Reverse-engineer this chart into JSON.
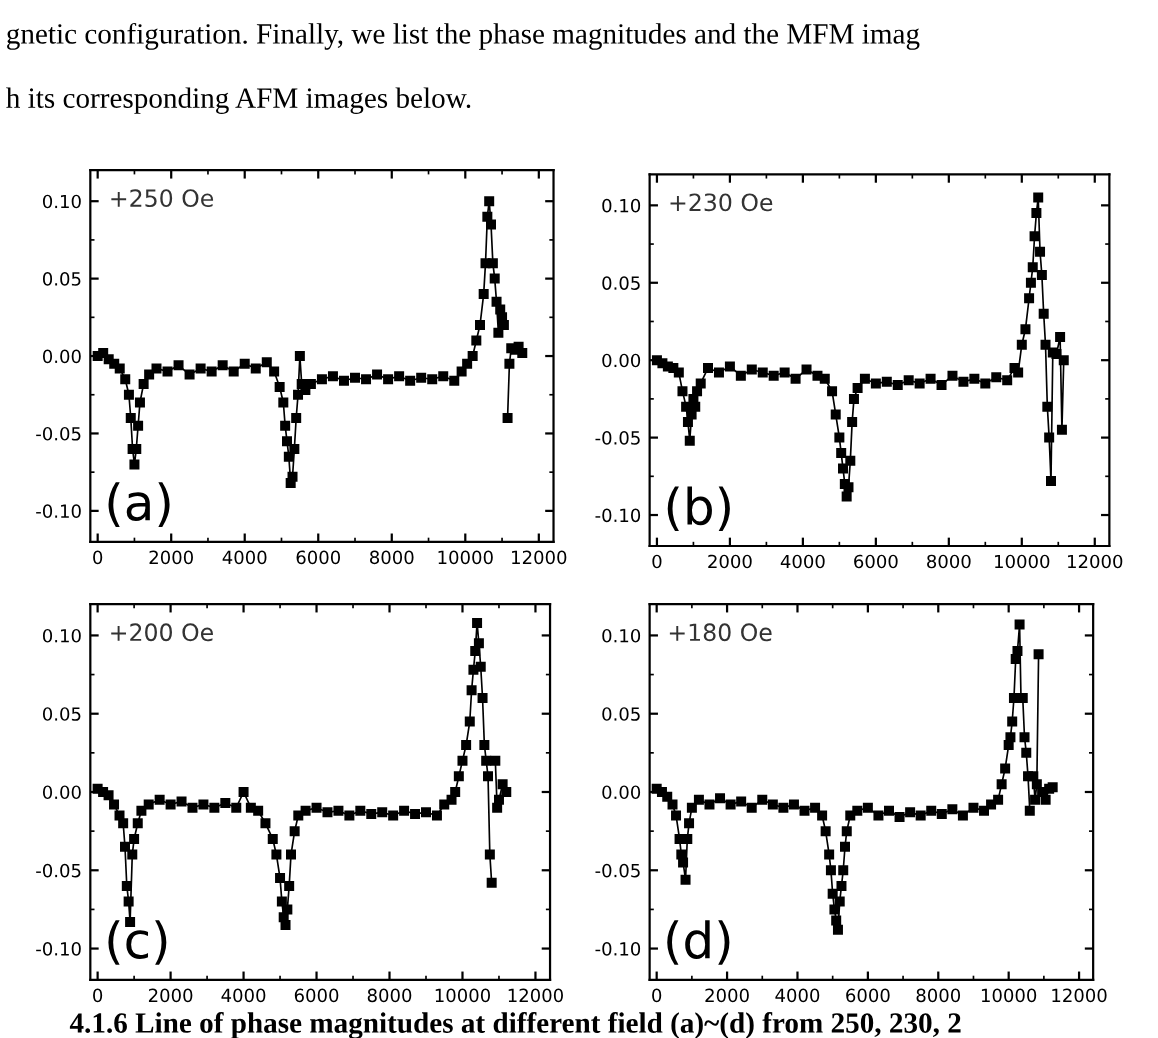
{
  "chart_data": [
    {
      "type": "line",
      "marker": "square",
      "line_style": "solid",
      "grid": false,
      "legend": false,
      "annotations": [
        "+250 Oe",
        "(a)",
        "gnetic configuration. Finally, we list the phase magnitudes and the MFM imag",
        "h its corresponding AFM images below."
      ],
      "xlim": [
        -200,
        12400
      ],
      "xticks": [
        0,
        2000,
        4000,
        6000,
        8000,
        10000,
        12000
      ],
      "ylim": [
        -0.12,
        0.12
      ],
      "yticks": [
        {
          "value": -0.1,
          "label": "-0.10"
        },
        {
          "value": -0.05,
          "label": "-0.05"
        },
        {
          "value": 0,
          "label": "0.00"
        },
        {
          "value": 0.05,
          "label": "0.05"
        },
        {
          "value": 0.1,
          "label": "0.10"
        }
      ],
      "series": [
        {
          "color": "#000000",
          "x": [
            0,
            150,
            300,
            450,
            600,
            750,
            850,
            900,
            950,
            1000,
            1050,
            1100,
            1150,
            1250,
            1400,
            1600,
            1900,
            2200,
            2500,
            2800,
            3100,
            3400,
            3700,
            4000,
            4300,
            4600,
            4800,
            4950,
            5050,
            5100,
            5150,
            5200,
            5250,
            5300,
            5350,
            5400,
            5450,
            5500,
            5550,
            5650,
            5800,
            6100,
            6400,
            6700,
            7000,
            7300,
            7600,
            7900,
            8200,
            8500,
            8800,
            9100,
            9400,
            9700,
            9900,
            10050,
            10200,
            10300,
            10400,
            10500,
            10550,
            10600,
            10650,
            10700,
            10750,
            10800,
            10850,
            10900,
            10950,
            11000,
            11050,
            11100,
            11150,
            11200,
            11250,
            11350,
            11450,
            11550
          ],
          "values": [
            0.0,
            0.002,
            -0.002,
            -0.005,
            -0.008,
            -0.015,
            -0.025,
            -0.04,
            -0.06,
            -0.07,
            -0.06,
            -0.045,
            -0.03,
            -0.018,
            -0.012,
            -0.008,
            -0.01,
            -0.006,
            -0.012,
            -0.008,
            -0.01,
            -0.006,
            -0.01,
            -0.005,
            -0.008,
            -0.004,
            -0.01,
            -0.02,
            -0.03,
            -0.045,
            -0.055,
            -0.065,
            -0.082,
            -0.078,
            -0.06,
            -0.04,
            -0.025,
            0.0,
            -0.018,
            -0.022,
            -0.018,
            -0.015,
            -0.013,
            -0.016,
            -0.014,
            -0.015,
            -0.012,
            -0.015,
            -0.013,
            -0.016,
            -0.014,
            -0.015,
            -0.013,
            -0.016,
            -0.01,
            -0.005,
            0.0,
            0.01,
            0.02,
            0.04,
            0.06,
            0.09,
            0.1,
            0.085,
            0.06,
            0.05,
            0.035,
            0.015,
            0.03,
            0.025,
            0.02,
            null,
            -0.04,
            -0.005,
            0.005,
            0.004,
            0.006,
            0.002
          ]
        }
      ]
    },
    {
      "type": "line",
      "marker": "square",
      "line_style": "solid",
      "grid": false,
      "legend": false,
      "annotations": [
        "+230 Oe",
        "(b)"
      ],
      "xlim": [
        -200,
        12400
      ],
      "xticks": [
        0,
        2000,
        4000,
        6000,
        8000,
        10000,
        12000
      ],
      "ylim": [
        -0.12,
        0.12
      ],
      "yticks": [
        {
          "value": -0.1,
          "label": "-0.10"
        },
        {
          "value": -0.05,
          "label": "-0.05"
        },
        {
          "value": 0,
          "label": "0.00"
        },
        {
          "value": 0.05,
          "label": "0.05"
        },
        {
          "value": 0.1,
          "label": "0.10"
        }
      ],
      "series": [
        {
          "color": "#000000",
          "x": [
            0,
            150,
            300,
            450,
            600,
            700,
            800,
            850,
            900,
            950,
            1000,
            1050,
            1100,
            1200,
            1400,
            1700,
            2000,
            2300,
            2600,
            2900,
            3200,
            3500,
            3800,
            4100,
            4400,
            4600,
            4800,
            4900,
            5000,
            5050,
            5100,
            5150,
            5200,
            5250,
            5300,
            5350,
            5400,
            5500,
            5700,
            6000,
            6300,
            6600,
            6900,
            7200,
            7500,
            7800,
            8100,
            8400,
            8700,
            9000,
            9300,
            9600,
            9800,
            9900,
            10000,
            10100,
            10200,
            10250,
            10300,
            10350,
            10400,
            10450,
            10500,
            10550,
            10600,
            10650,
            10700,
            10750,
            10800,
            10850,
            10950,
            11050,
            11100,
            11150
          ],
          "values": [
            0.0,
            -0.002,
            -0.004,
            -0.005,
            -0.008,
            -0.02,
            -0.03,
            -0.04,
            -0.052,
            -0.035,
            -0.025,
            -0.03,
            -0.02,
            -0.015,
            -0.005,
            -0.008,
            -0.004,
            -0.01,
            -0.006,
            -0.008,
            -0.01,
            -0.008,
            -0.012,
            -0.006,
            -0.01,
            -0.012,
            -0.02,
            -0.035,
            -0.05,
            -0.06,
            -0.07,
            -0.08,
            -0.088,
            -0.082,
            -0.065,
            -0.04,
            -0.025,
            -0.018,
            -0.012,
            -0.015,
            -0.014,
            -0.016,
            -0.013,
            -0.015,
            -0.012,
            -0.016,
            -0.01,
            -0.014,
            -0.012,
            -0.015,
            -0.011,
            -0.013,
            -0.005,
            -0.008,
            0.01,
            0.02,
            0.04,
            0.05,
            0.06,
            0.08,
            0.095,
            0.105,
            0.07,
            0.055,
            0.03,
            0.01,
            -0.03,
            -0.05,
            -0.078,
            0.005,
            0.004,
            0.015,
            -0.045,
            0.0
          ]
        }
      ]
    },
    {
      "type": "line",
      "marker": "square",
      "line_style": "solid",
      "grid": false,
      "legend": false,
      "annotations": [
        "+200 Oe",
        "(c)",
        "4.1.6 Line of phase magnitudes at different field (a)~(d) from 250, 230, 2"
      ],
      "xlim": [
        -200,
        12400
      ],
      "xticks": [
        0,
        2000,
        4000,
        6000,
        8000,
        10000,
        12000
      ],
      "ylim": [
        -0.12,
        0.12
      ],
      "yticks": [
        {
          "value": -0.1,
          "label": "-0.10"
        },
        {
          "value": -0.05,
          "label": "-0.05"
        },
        {
          "value": 0,
          "label": "0.00"
        },
        {
          "value": 0.05,
          "label": "0.05"
        },
        {
          "value": 0.1,
          "label": "0.10"
        }
      ],
      "series": [
        {
          "color": "#000000",
          "x": [
            0,
            150,
            300,
            450,
            600,
            700,
            750,
            800,
            850,
            890,
            950,
            1000,
            1100,
            1200,
            1400,
            1700,
            2000,
            2300,
            2600,
            2900,
            3200,
            3500,
            3800,
            4000,
            4200,
            4400,
            4600,
            4800,
            4900,
            5000,
            5050,
            5100,
            5150,
            5200,
            5250,
            5300,
            5400,
            5500,
            5700,
            6000,
            6300,
            6600,
            6900,
            7200,
            7500,
            7800,
            8100,
            8400,
            8700,
            9000,
            9300,
            9500,
            9700,
            9800,
            9900,
            10000,
            10100,
            10200,
            10250,
            10300,
            10350,
            10400,
            10450,
            10500,
            10550,
            10600,
            10650,
            10700,
            10750,
            10800,
            10850,
            10900,
            10950,
            11000,
            11100,
            11200
          ],
          "values": [
            0.002,
            0.0,
            -0.002,
            -0.008,
            -0.015,
            -0.02,
            -0.035,
            -0.06,
            -0.07,
            -0.083,
            -0.04,
            -0.03,
            -0.02,
            -0.012,
            -0.008,
            -0.005,
            -0.008,
            -0.006,
            -0.01,
            -0.008,
            -0.01,
            -0.007,
            -0.01,
            0.0,
            -0.01,
            -0.012,
            -0.02,
            -0.03,
            -0.04,
            -0.055,
            -0.07,
            -0.08,
            -0.085,
            -0.075,
            -0.06,
            -0.04,
            -0.025,
            -0.015,
            -0.012,
            -0.01,
            -0.013,
            -0.012,
            -0.015,
            -0.012,
            -0.014,
            -0.013,
            -0.015,
            -0.012,
            -0.014,
            -0.013,
            -0.015,
            -0.008,
            -0.005,
            0.0,
            0.01,
            0.02,
            0.03,
            0.045,
            0.065,
            0.078,
            0.09,
            0.108,
            0.095,
            0.08,
            0.06,
            0.03,
            0.02,
            0.01,
            -0.04,
            -0.058,
            null,
            0.02,
            -0.01,
            -0.005,
            0.005,
            0.0
          ]
        }
      ]
    },
    {
      "type": "line",
      "marker": "square",
      "line_style": "solid",
      "grid": false,
      "legend": false,
      "annotations": [
        "+180 Oe",
        "(d)"
      ],
      "xlim": [
        -200,
        12400
      ],
      "xticks": [
        0,
        2000,
        4000,
        6000,
        8000,
        10000,
        12000
      ],
      "ylim": [
        -0.12,
        0.12
      ],
      "yticks": [
        {
          "value": -0.1,
          "label": "-0.10"
        },
        {
          "value": -0.05,
          "label": "-0.05"
        },
        {
          "value": 0,
          "label": "0.00"
        },
        {
          "value": 0.05,
          "label": "0.05"
        },
        {
          "value": 0.1,
          "label": "0.10"
        }
      ],
      "series": [
        {
          "color": "#000000",
          "x": [
            0,
            150,
            300,
            450,
            550,
            650,
            700,
            750,
            820,
            870,
            920,
            1000,
            1200,
            1500,
            1800,
            2100,
            2400,
            2700,
            3000,
            3300,
            3600,
            3900,
            4200,
            4500,
            4700,
            4800,
            4900,
            4950,
            5000,
            5050,
            5100,
            5150,
            5200,
            5250,
            5300,
            5350,
            5400,
            5500,
            5700,
            6000,
            6300,
            6600,
            6900,
            7200,
            7500,
            7800,
            8100,
            8400,
            8700,
            9000,
            9300,
            9500,
            9700,
            9800,
            9900,
            10000,
            10050,
            10100,
            10150,
            10200,
            10250,
            10310,
            10350,
            10400,
            10450,
            10500,
            10550,
            10600,
            10640,
            10700,
            10750,
            10800,
            10850,
            10900,
            10950,
            11050,
            11150,
            11250
          ],
          "values": [
            0.002,
            0.0,
            -0.003,
            -0.008,
            -0.015,
            -0.03,
            -0.04,
            -0.045,
            -0.056,
            -0.03,
            -0.02,
            -0.01,
            -0.005,
            -0.008,
            -0.004,
            -0.008,
            -0.006,
            -0.01,
            -0.005,
            -0.008,
            -0.01,
            -0.008,
            -0.012,
            -0.01,
            -0.015,
            -0.025,
            -0.04,
            -0.05,
            -0.065,
            -0.075,
            -0.082,
            -0.088,
            -0.07,
            -0.06,
            -0.05,
            -0.035,
            -0.025,
            -0.015,
            -0.012,
            -0.01,
            -0.015,
            -0.012,
            -0.016,
            -0.013,
            -0.015,
            -0.012,
            -0.014,
            -0.011,
            -0.015,
            -0.01,
            -0.012,
            -0.008,
            -0.005,
            0.005,
            0.015,
            0.03,
            0.035,
            0.045,
            0.06,
            0.085,
            0.09,
            0.107,
            0.06,
            0.06,
            0.035,
            0.025,
            0.01,
            -0.012,
            null,
            0.01,
            -0.005,
            0.005,
            0.088,
            null,
            0.0,
            -0.005,
            0.002,
            0.003
          ]
        }
      ]
    }
  ]
}
